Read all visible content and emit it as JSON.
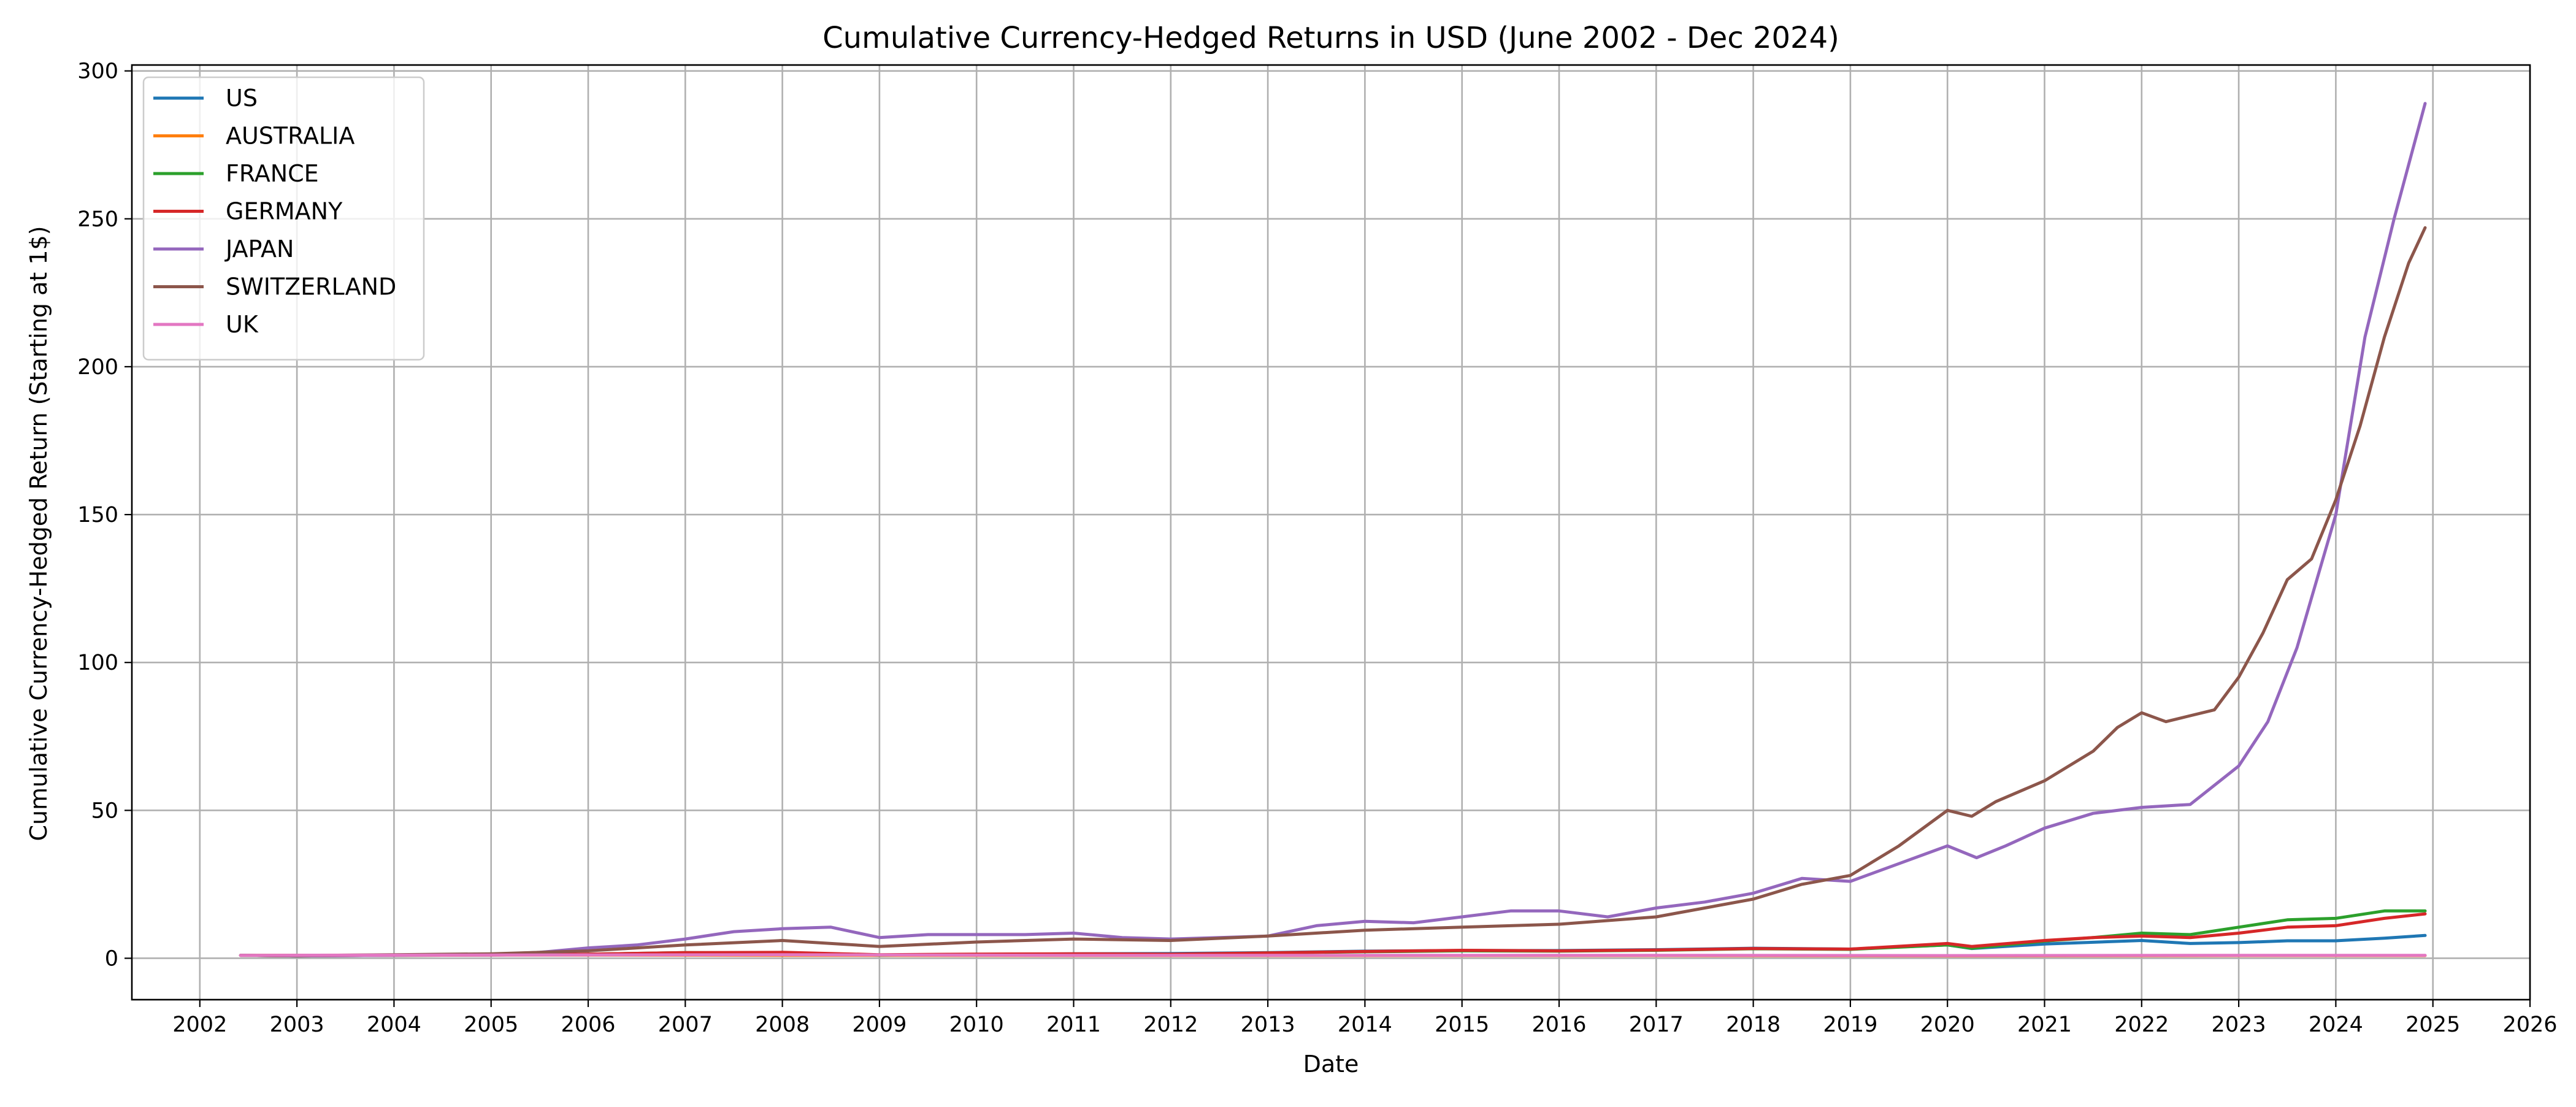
{
  "chart_data": {
    "type": "line",
    "title": "Cumulative Currency-Hedged Returns in USD (June 2002 - Dec 2024)",
    "xlabel": "Date",
    "ylabel": "Cumulative Currency-Hedged Return (Starting at 1$)",
    "xlim": [
      2001.3,
      2026.0
    ],
    "ylim": [
      -14,
      302
    ],
    "xticks": [
      2002,
      2003,
      2004,
      2005,
      2006,
      2007,
      2008,
      2009,
      2010,
      2011,
      2012,
      2013,
      2014,
      2015,
      2016,
      2017,
      2018,
      2019,
      2020,
      2021,
      2022,
      2023,
      2024,
      2025,
      2026
    ],
    "yticks": [
      0,
      50,
      100,
      150,
      200,
      250,
      300
    ],
    "grid": true,
    "legend_position": "top-left",
    "series": [
      {
        "name": "US",
        "color": "#1f77b4",
        "x": [
          2002.42,
          2003.0,
          2004.0,
          2005.0,
          2006.0,
          2007.0,
          2008.0,
          2009.0,
          2010.0,
          2011.0,
          2012.0,
          2013.0,
          2014.0,
          2015.0,
          2016.0,
          2017.0,
          2018.0,
          2019.0,
          2020.0,
          2020.25,
          2021.0,
          2022.0,
          2022.5,
          2023.0,
          2023.5,
          2024.0,
          2024.5,
          2024.92
        ],
        "y": [
          1.0,
          0.8,
          1.1,
          1.2,
          1.3,
          1.5,
          1.6,
          1.0,
          1.3,
          1.5,
          1.6,
          1.9,
          2.4,
          2.6,
          2.6,
          2.9,
          3.4,
          3.1,
          4.5,
          3.3,
          4.8,
          6.0,
          5.0,
          5.3,
          5.9,
          5.9,
          6.8,
          7.7
        ]
      },
      {
        "name": "AUSTRALIA",
        "color": "#ff7f0e",
        "x": [
          2002.42,
          2005.0,
          2008.0,
          2011.0,
          2014.0,
          2017.0,
          2020.0,
          2023.0,
          2024.92
        ],
        "y": [
          1.0,
          1.1,
          1.0,
          0.9,
          0.9,
          0.9,
          0.8,
          0.9,
          0.9
        ]
      },
      {
        "name": "FRANCE",
        "color": "#2ca02c",
        "x": [
          2002.42,
          2003.0,
          2004.0,
          2005.0,
          2006.0,
          2007.0,
          2008.0,
          2009.0,
          2010.0,
          2011.0,
          2012.0,
          2013.0,
          2014.0,
          2015.0,
          2016.0,
          2017.0,
          2018.0,
          2019.0,
          2020.0,
          2020.25,
          2021.0,
          2021.5,
          2022.0,
          2022.5,
          2023.0,
          2023.5,
          2024.0,
          2024.5,
          2024.92
        ],
        "y": [
          1.0,
          0.8,
          1.0,
          1.1,
          1.4,
          1.9,
          1.8,
          1.1,
          1.3,
          1.4,
          1.3,
          1.8,
          2.2,
          2.5,
          2.4,
          2.7,
          3.2,
          3.0,
          4.5,
          3.4,
          5.8,
          7.0,
          8.5,
          8.0,
          10.5,
          13.0,
          13.5,
          16.0,
          16.0
        ]
      },
      {
        "name": "GERMANY",
        "color": "#d62728",
        "x": [
          2002.42,
          2003.0,
          2004.0,
          2005.0,
          2006.0,
          2007.0,
          2008.0,
          2009.0,
          2010.0,
          2011.0,
          2012.0,
          2013.0,
          2014.0,
          2015.0,
          2016.0,
          2017.0,
          2018.0,
          2019.0,
          2020.0,
          2020.25,
          2021.0,
          2021.5,
          2022.0,
          2022.5,
          2023.0,
          2023.5,
          2024.0,
          2024.5,
          2024.92
        ],
        "y": [
          1.0,
          0.8,
          1.0,
          1.1,
          1.4,
          1.9,
          2.0,
          1.2,
          1.4,
          1.5,
          1.4,
          1.8,
          2.3,
          2.7,
          2.5,
          2.8,
          3.3,
          3.1,
          5.0,
          4.0,
          6.0,
          7.0,
          7.5,
          7.0,
          8.5,
          10.5,
          11.0,
          13.5,
          15.0
        ]
      },
      {
        "name": "JAPAN",
        "color": "#9467bd",
        "x": [
          2002.42,
          2003.0,
          2004.0,
          2005.0,
          2005.5,
          2006.0,
          2006.5,
          2007.0,
          2007.5,
          2008.0,
          2008.5,
          2009.0,
          2009.5,
          2010.0,
          2010.5,
          2011.0,
          2011.5,
          2012.0,
          2012.5,
          2013.0,
          2013.5,
          2014.0,
          2014.5,
          2015.0,
          2015.5,
          2016.0,
          2016.5,
          2017.0,
          2017.5,
          2018.0,
          2018.5,
          2019.0,
          2019.5,
          2020.0,
          2020.3,
          2020.6,
          2021.0,
          2021.5,
          2022.0,
          2022.5,
          2023.0,
          2023.3,
          2023.6,
          2024.0,
          2024.3,
          2024.6,
          2024.92
        ],
        "y": [
          1.0,
          0.8,
          1.0,
          1.3,
          2.0,
          3.5,
          4.5,
          6.5,
          9.0,
          10.0,
          10.5,
          7.0,
          8.0,
          8.0,
          8.0,
          8.5,
          7.0,
          6.5,
          7.0,
          7.5,
          11.0,
          12.5,
          12.0,
          14.0,
          16.0,
          16.0,
          14.0,
          17.0,
          19.0,
          22.0,
          27.0,
          26.0,
          32.0,
          38.0,
          34.0,
          38.0,
          44.0,
          49.0,
          51.0,
          52.0,
          65.0,
          80.0,
          105.0,
          150.0,
          210.0,
          250.0,
          289.0
        ]
      },
      {
        "name": "SWITZERLAND",
        "color": "#8c564b",
        "x": [
          2002.42,
          2003.0,
          2004.0,
          2005.0,
          2006.0,
          2007.0,
          2008.0,
          2008.5,
          2009.0,
          2010.0,
          2011.0,
          2012.0,
          2013.0,
          2014.0,
          2015.0,
          2016.0,
          2017.0,
          2017.5,
          2018.0,
          2018.5,
          2019.0,
          2019.5,
          2020.0,
          2020.25,
          2020.5,
          2021.0,
          2021.5,
          2021.75,
          2022.0,
          2022.25,
          2022.5,
          2022.75,
          2023.0,
          2023.25,
          2023.5,
          2023.75,
          2024.0,
          2024.25,
          2024.5,
          2024.75,
          2024.92
        ],
        "y": [
          1.0,
          0.9,
          1.2,
          1.5,
          2.5,
          4.5,
          6.0,
          5.0,
          4.0,
          5.5,
          6.5,
          6.0,
          7.5,
          9.5,
          10.5,
          11.5,
          14.0,
          17.0,
          20.0,
          25.0,
          28.0,
          38.0,
          50.0,
          48.0,
          53.0,
          60.0,
          70.0,
          78.0,
          83.0,
          80.0,
          82.0,
          84.0,
          95.0,
          110.0,
          128.0,
          135.0,
          155.0,
          180.0,
          210.0,
          235.0,
          247.0
        ]
      },
      {
        "name": "UK",
        "color": "#e377c2",
        "x": [
          2002.42,
          2005.0,
          2008.0,
          2011.0,
          2014.0,
          2017.0,
          2020.0,
          2023.0,
          2024.92
        ],
        "y": [
          1.0,
          1.1,
          1.2,
          1.0,
          1.0,
          1.0,
          0.9,
          1.0,
          1.0
        ]
      }
    ]
  }
}
